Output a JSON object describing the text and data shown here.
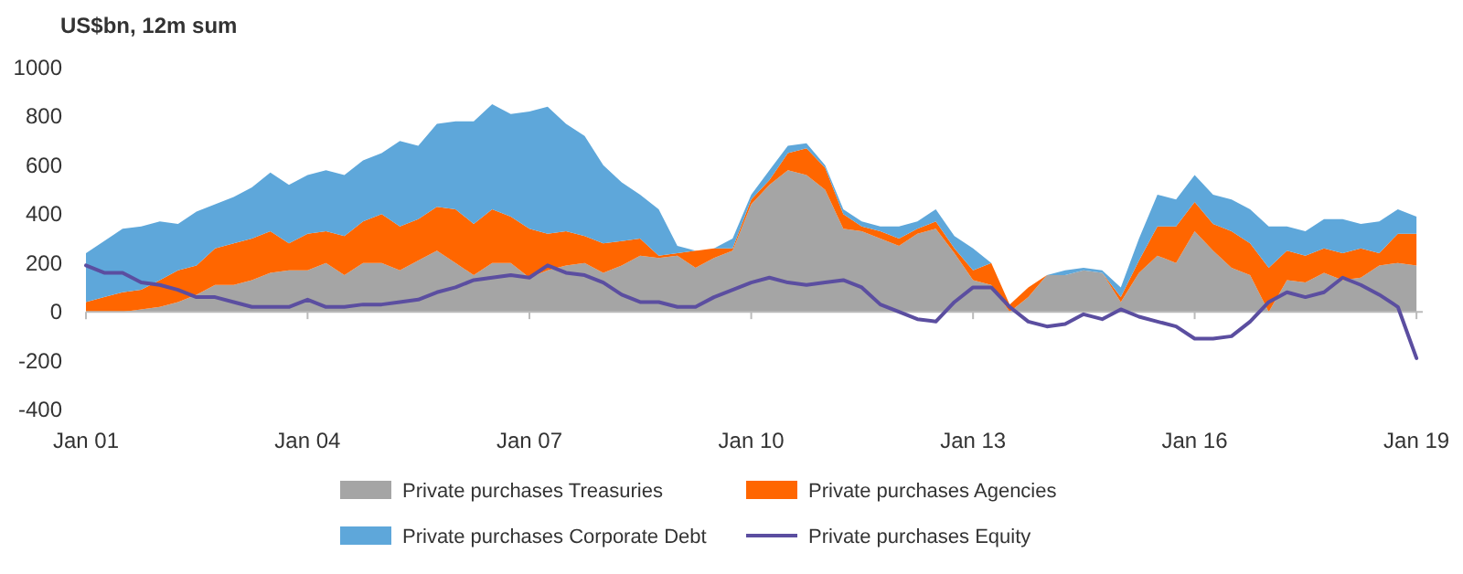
{
  "chart_data": {
    "type": "area",
    "stacked": true,
    "ylabel": "US$bn, 12m sum",
    "x": [
      "2001-01",
      "2001-04",
      "2001-07",
      "2001-10",
      "2002-01",
      "2002-04",
      "2002-07",
      "2002-10",
      "2003-01",
      "2003-04",
      "2003-07",
      "2003-10",
      "2004-01",
      "2004-04",
      "2004-07",
      "2004-10",
      "2005-01",
      "2005-04",
      "2005-07",
      "2005-10",
      "2006-01",
      "2006-04",
      "2006-07",
      "2006-10",
      "2007-01",
      "2007-04",
      "2007-07",
      "2007-10",
      "2008-01",
      "2008-04",
      "2008-07",
      "2008-10",
      "2009-01",
      "2009-04",
      "2009-07",
      "2009-10",
      "2010-01",
      "2010-04",
      "2010-07",
      "2010-10",
      "2011-01",
      "2011-04",
      "2011-07",
      "2011-10",
      "2012-01",
      "2012-04",
      "2012-07",
      "2012-10",
      "2013-01",
      "2013-04",
      "2013-07",
      "2013-10",
      "2014-01",
      "2014-04",
      "2014-07",
      "2014-10",
      "2015-01",
      "2015-04",
      "2015-07",
      "2015-10",
      "2016-01",
      "2016-04",
      "2016-07",
      "2016-10",
      "2017-01",
      "2017-04",
      "2017-07",
      "2017-10",
      "2018-01",
      "2018-04",
      "2018-07",
      "2018-10",
      "2019-01"
    ],
    "series": [
      {
        "name": "Private purchases Treasuries",
        "color": "#a5a5a5",
        "values": [
          0,
          0,
          0,
          10,
          20,
          40,
          70,
          110,
          110,
          130,
          160,
          170,
          170,
          200,
          150,
          200,
          200,
          170,
          210,
          250,
          200,
          150,
          200,
          200,
          140,
          170,
          190,
          200,
          160,
          190,
          230,
          220,
          230,
          180,
          220,
          250,
          440,
          520,
          580,
          560,
          500,
          340,
          330,
          300,
          270,
          320,
          340,
          240,
          130,
          110,
          0,
          60,
          150,
          150,
          170,
          160,
          40,
          160,
          230,
          200,
          330,
          250,
          180,
          150,
          0,
          130,
          120,
          160,
          130,
          140,
          190,
          200,
          190
        ]
      },
      {
        "name": "Private purchases Agencies",
        "color": "#ff6600",
        "values": [
          40,
          60,
          80,
          80,
          110,
          130,
          120,
          150,
          170,
          170,
          170,
          110,
          150,
          130,
          160,
          170,
          200,
          180,
          170,
          180,
          220,
          210,
          220,
          190,
          200,
          150,
          140,
          110,
          120,
          100,
          70,
          10,
          10,
          70,
          40,
          10,
          20,
          20,
          70,
          110,
          90,
          60,
          20,
          30,
          30,
          20,
          30,
          20,
          40,
          90,
          30,
          40,
          0,
          0,
          0,
          0,
          20,
          50,
          120,
          150,
          120,
          110,
          150,
          130,
          180,
          120,
          110,
          100,
          110,
          120,
          50,
          120,
          130
        ]
      },
      {
        "name": "Private purchases Corporate Debt",
        "color": "#5ea7da",
        "values": [
          200,
          230,
          260,
          260,
          240,
          190,
          220,
          180,
          190,
          210,
          240,
          240,
          240,
          250,
          250,
          250,
          250,
          350,
          300,
          340,
          360,
          420,
          430,
          420,
          480,
          520,
          440,
          410,
          320,
          240,
          180,
          190,
          30,
          0,
          0,
          40,
          20,
          40,
          30,
          20,
          10,
          20,
          20,
          20,
          50,
          30,
          50,
          50,
          90,
          0,
          0,
          0,
          0,
          20,
          10,
          10,
          40,
          90,
          130,
          110,
          110,
          120,
          130,
          140,
          170,
          100,
          100,
          120,
          140,
          100,
          130,
          100,
          70
        ]
      },
      {
        "name": "Private purchases Equity",
        "type": "line",
        "color": "#5b4ea0",
        "values": [
          190,
          160,
          160,
          120,
          110,
          90,
          60,
          60,
          40,
          20,
          20,
          20,
          50,
          20,
          20,
          30,
          30,
          40,
          50,
          80,
          100,
          130,
          140,
          150,
          140,
          190,
          160,
          150,
          120,
          70,
          40,
          40,
          20,
          20,
          60,
          90,
          120,
          140,
          120,
          110,
          120,
          130,
          100,
          30,
          0,
          -30,
          -40,
          40,
          100,
          100,
          20,
          -40,
          -60,
          -50,
          -10,
          -30,
          10,
          -20,
          -40,
          -60,
          -110,
          -110,
          -100,
          -40,
          40,
          80,
          60,
          80,
          140,
          110,
          70,
          20,
          -190
        ]
      }
    ],
    "xlim": [
      "2001-01",
      "2019-02"
    ],
    "xticks": [
      {
        "value": "2001-01",
        "label": "Jan 01"
      },
      {
        "value": "2004-01",
        "label": "Jan 04"
      },
      {
        "value": "2007-01",
        "label": "Jan 07"
      },
      {
        "value": "2010-01",
        "label": "Jan 10"
      },
      {
        "value": "2013-01",
        "label": "Jan 13"
      },
      {
        "value": "2016-01",
        "label": "Jan 16"
      },
      {
        "value": "2019-01",
        "label": "Jan 19"
      }
    ],
    "ylim": [
      -400,
      1000
    ],
    "yticks": [
      -400,
      -200,
      0,
      200,
      400,
      600,
      800,
      1000
    ],
    "legend": "bottom"
  }
}
